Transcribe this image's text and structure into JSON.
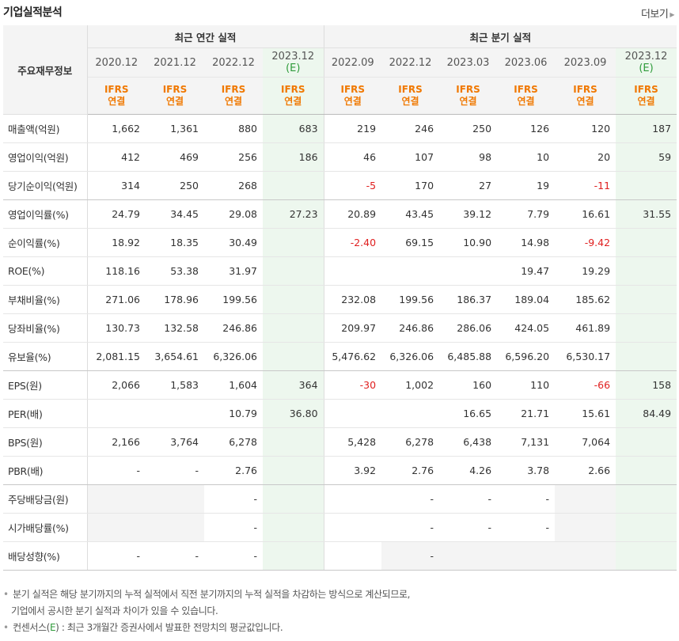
{
  "header": {
    "title": "기업실적분석",
    "more_label": "더보기",
    "more_icon": "chevron-right-icon"
  },
  "table": {
    "label_header": "주요재무정보",
    "group_annual": "최근 연간 실적",
    "group_quarter": "최근 분기 실적",
    "periods": [
      "2020.12",
      "2021.12",
      "2022.12",
      "2023.12",
      "2022.09",
      "2022.12",
      "2023.03",
      "2023.06",
      "2023.09",
      "2023.12"
    ],
    "estimate_marker": "(E)",
    "ifrs_label": "IFRS",
    "consolidated_label": "연결",
    "rows": [
      {
        "label": "매출액(억원)",
        "values": [
          "1,662",
          "1,361",
          "880",
          "683",
          "219",
          "246",
          "250",
          "126",
          "120",
          "187"
        ]
      },
      {
        "label": "영업이익(억원)",
        "values": [
          "412",
          "469",
          "256",
          "186",
          "46",
          "107",
          "98",
          "10",
          "20",
          "59"
        ]
      },
      {
        "label": "당기순이익(억원)",
        "values": [
          "314",
          "250",
          "268",
          "",
          "-5",
          "170",
          "27",
          "19",
          "-11",
          ""
        ]
      },
      {
        "label": "영업이익률(%)",
        "values": [
          "24.79",
          "34.45",
          "29.08",
          "27.23",
          "20.89",
          "43.45",
          "39.12",
          "7.79",
          "16.61",
          "31.55"
        ]
      },
      {
        "label": "순이익률(%)",
        "values": [
          "18.92",
          "18.35",
          "30.49",
          "",
          "-2.40",
          "69.15",
          "10.90",
          "14.98",
          "-9.42",
          ""
        ]
      },
      {
        "label": "ROE(%)",
        "values": [
          "118.16",
          "53.38",
          "31.97",
          "",
          "",
          "",
          "",
          "19.47",
          "19.29",
          ""
        ]
      },
      {
        "label": "부채비율(%)",
        "values": [
          "271.06",
          "178.96",
          "199.56",
          "",
          "232.08",
          "199.56",
          "186.37",
          "189.04",
          "185.62",
          ""
        ]
      },
      {
        "label": "당좌비율(%)",
        "values": [
          "130.73",
          "132.58",
          "246.86",
          "",
          "209.97",
          "246.86",
          "286.06",
          "424.05",
          "461.89",
          ""
        ]
      },
      {
        "label": "유보율(%)",
        "values": [
          "2,081.15",
          "3,654.61",
          "6,326.06",
          "",
          "5,476.62",
          "6,326.06",
          "6,485.88",
          "6,596.20",
          "6,530.17",
          ""
        ]
      },
      {
        "label": "EPS(원)",
        "values": [
          "2,066",
          "1,583",
          "1,604",
          "364",
          "-30",
          "1,002",
          "160",
          "110",
          "-66",
          "158"
        ]
      },
      {
        "label": "PER(배)",
        "values": [
          "",
          "",
          "10.79",
          "36.80",
          "",
          "",
          "16.65",
          "21.71",
          "15.61",
          "84.49"
        ]
      },
      {
        "label": "BPS(원)",
        "values": [
          "2,166",
          "3,764",
          "6,278",
          "",
          "5,428",
          "6,278",
          "6,438",
          "7,131",
          "7,064",
          ""
        ]
      },
      {
        "label": "PBR(배)",
        "values": [
          "-",
          "-",
          "2.76",
          "",
          "3.92",
          "2.76",
          "4.26",
          "3.78",
          "2.66",
          ""
        ]
      },
      {
        "label": "주당배당금(원)",
        "values": [
          "",
          "",
          "-",
          "",
          "",
          "-",
          "-",
          "-",
          "",
          ""
        ]
      },
      {
        "label": "시가배당률(%)",
        "values": [
          "",
          "",
          "-",
          "",
          "",
          "-",
          "-",
          "-",
          "",
          ""
        ]
      },
      {
        "label": "배당성향(%)",
        "values": [
          "-",
          "-",
          "-",
          "",
          "",
          "-",
          "",
          "",
          "",
          ""
        ]
      }
    ],
    "gray_cells": [
      [
        13,
        0
      ],
      [
        13,
        1
      ],
      [
        13,
        8
      ],
      [
        14,
        0
      ],
      [
        14,
        1
      ],
      [
        14,
        8
      ],
      [
        15,
        5
      ],
      [
        15,
        6
      ],
      [
        15,
        7
      ],
      [
        15,
        8
      ]
    ]
  },
  "notes": {
    "line1": "분기 실적은 해당 분기까지의 누적 실적에서 직전 분기까지의 누적 실적을 차감하는 방식으로 계산되므로,",
    "line2": "기업에서 공시한 분기 실적과 차이가 있을 수 있습니다.",
    "line3_prefix": "컨센서스(",
    "line3_mark": "E",
    "line3_suffix": ") : 최근 3개월간 증권사에서 발표한 전망치의 평균값입니다.",
    "bullet": "•"
  }
}
